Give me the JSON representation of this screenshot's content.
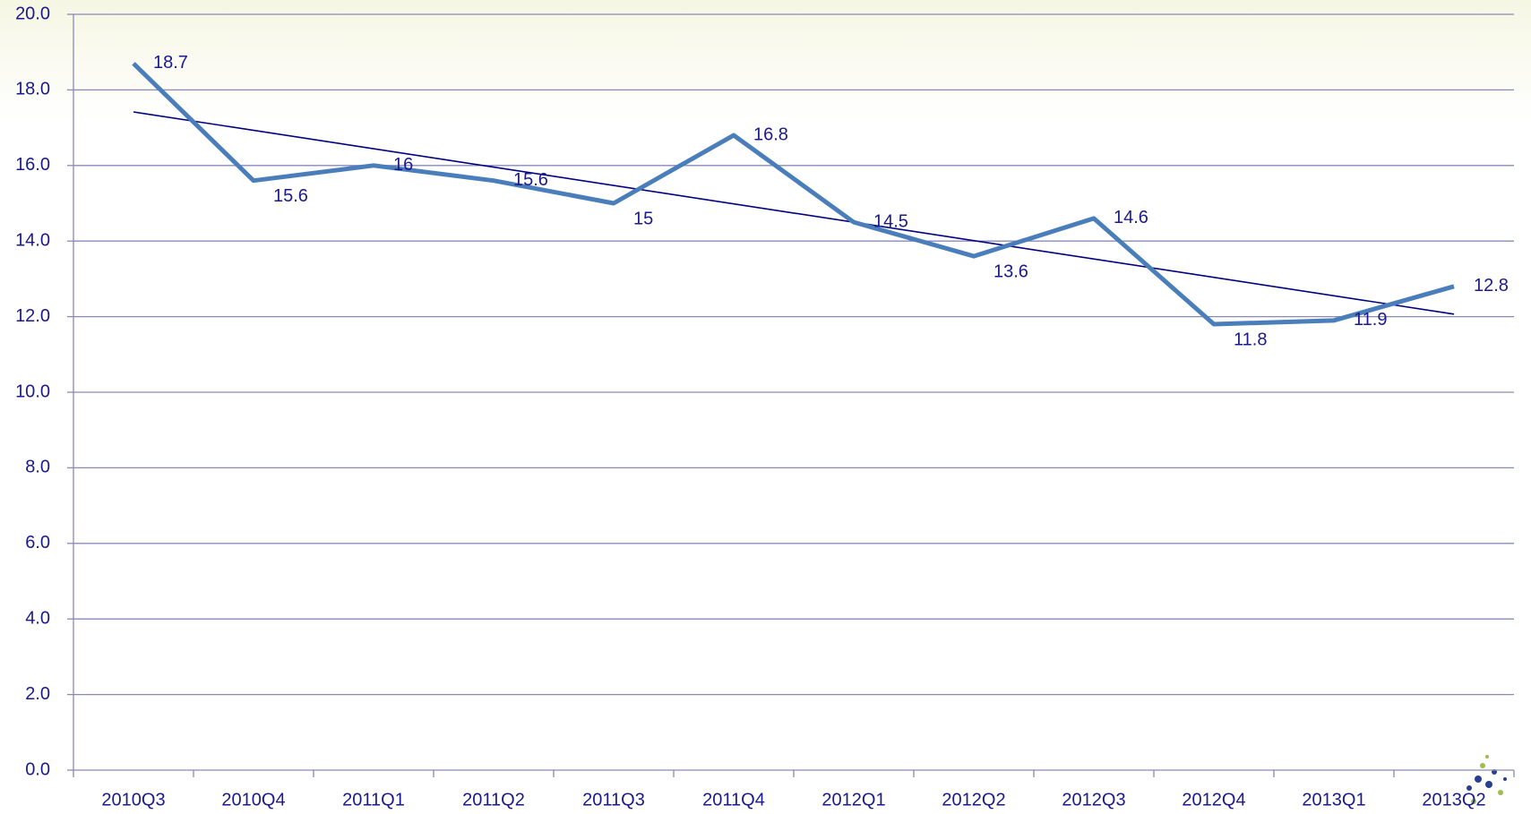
{
  "chart_data": {
    "type": "line",
    "categories": [
      "2010Q3",
      "2010Q4",
      "2011Q1",
      "2011Q2",
      "2011Q3",
      "2011Q4",
      "2012Q1",
      "2012Q2",
      "2012Q3",
      "2012Q4",
      "2013Q1",
      "2013Q2"
    ],
    "values": [
      18.7,
      15.6,
      16.0,
      15.6,
      15.0,
      16.8,
      14.5,
      13.6,
      14.6,
      11.8,
      11.9,
      12.8
    ],
    "color": "#4a7ebb",
    "trendline": true,
    "trendline_color": "#00007f",
    "ylim": [
      0,
      20
    ],
    "yticks": [
      {
        "value": 0,
        "label": "0.0"
      },
      {
        "value": 2,
        "label": "2.0"
      },
      {
        "value": 4,
        "label": "4.0"
      },
      {
        "value": 6,
        "label": "6.0"
      },
      {
        "value": 8,
        "label": "8.0"
      },
      {
        "value": 10,
        "label": "10.0"
      },
      {
        "value": 12,
        "label": "12.0"
      },
      {
        "value": 14,
        "label": "14.0"
      },
      {
        "value": 16,
        "label": "16.0"
      },
      {
        "value": 18,
        "label": "18.0"
      },
      {
        "value": 20,
        "label": "20.0"
      }
    ],
    "grid": true
  }
}
